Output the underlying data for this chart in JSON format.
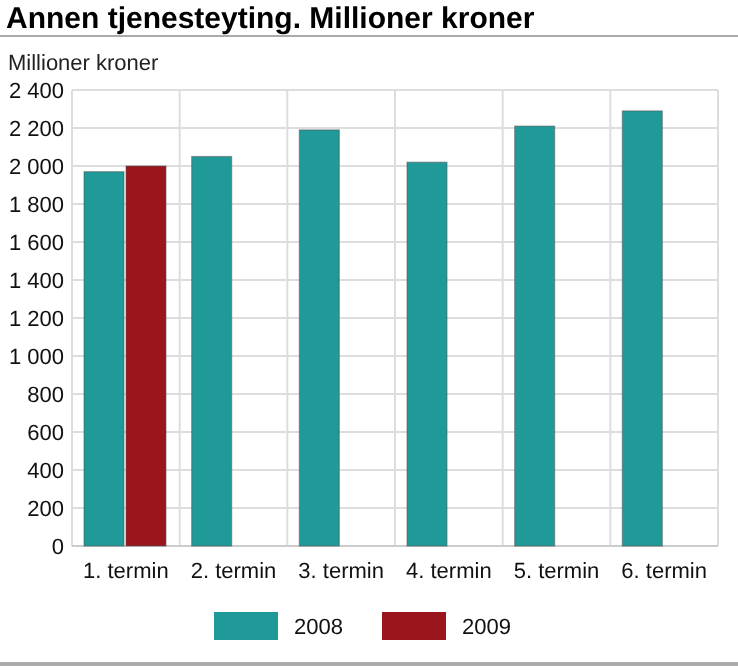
{
  "chart_data": {
    "type": "bar",
    "title": "Annen tjenesteyting. Millioner kroner",
    "ylabel": "Millioner kroner",
    "categories": [
      "1. termin",
      "2. termin",
      "3. termin",
      "4. termin",
      "5. termin",
      "6. termin"
    ],
    "series": [
      {
        "name": "2008",
        "color": "#1f9a98",
        "values": [
          1970,
          2050,
          2190,
          2020,
          2210,
          2290
        ]
      },
      {
        "name": "2009",
        "color": "#9b161c",
        "values": [
          2000,
          null,
          null,
          null,
          null,
          null
        ]
      }
    ],
    "ylim": [
      0,
      2400
    ],
    "yticks": [
      0,
      200,
      400,
      600,
      800,
      {
        "value": 1000,
        "label": "1 000"
      },
      {
        "value": 1200,
        "label": "1 200"
      },
      {
        "value": 1400,
        "label": "1 400"
      },
      {
        "value": 1600,
        "label": "1 600"
      },
      {
        "value": 1800,
        "label": "1 800"
      },
      {
        "value": 2000,
        "label": "2 000"
      },
      {
        "value": 2200,
        "label": "2 200"
      },
      {
        "value": 2400,
        "label": "2 400"
      }
    ],
    "grid": true,
    "legend": "bottom"
  }
}
